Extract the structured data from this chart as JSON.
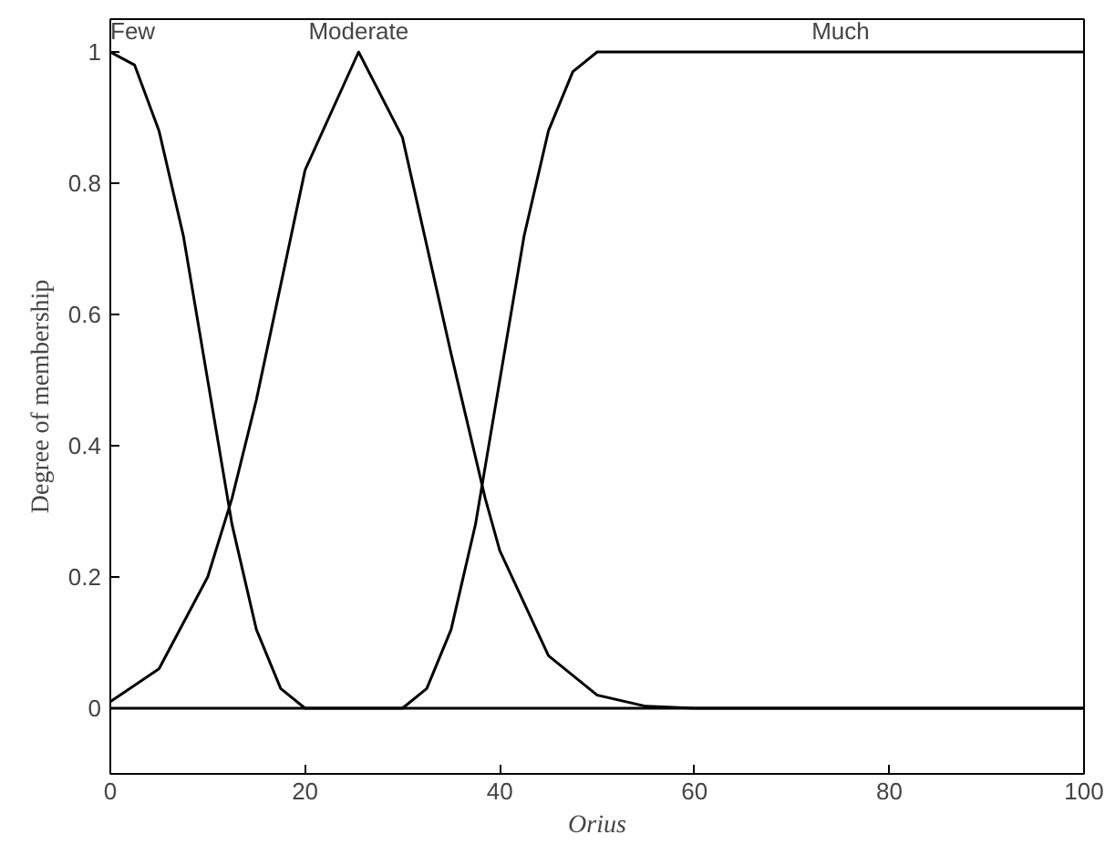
{
  "chart_data": {
    "type": "line",
    "xlabel": "Orius",
    "ylabel": "Degree of membership",
    "xlim": [
      0,
      100
    ],
    "ylim": [
      -0.1,
      1.05
    ],
    "xticks": [
      0,
      20,
      40,
      60,
      80,
      100
    ],
    "yticks": [
      0,
      0.2,
      0.4,
      0.6,
      0.8,
      1
    ],
    "grid": false,
    "marker": "none",
    "line_style": "solid",
    "series": [
      {
        "name": "Few",
        "color": "#000000",
        "x": [
          0,
          2.5,
          5,
          7.5,
          10,
          12.5,
          15,
          17.5,
          20,
          100
        ],
        "values": [
          1,
          0.98,
          0.88,
          0.72,
          0.5,
          0.28,
          0.12,
          0.03,
          0,
          0
        ]
      },
      {
        "name": "Moderate",
        "color": "#000000",
        "x": [
          0,
          5,
          10,
          12.5,
          15,
          20,
          25.5,
          30,
          35,
          38.5,
          40,
          45,
          50,
          55,
          60,
          100
        ],
        "values": [
          0.01,
          0.06,
          0.2,
          0.32,
          0.47,
          0.82,
          1,
          0.87,
          0.54,
          0.32,
          0.24,
          0.08,
          0.02,
          0.003,
          0,
          0
        ]
      },
      {
        "name": "Much",
        "color": "#000000",
        "x": [
          0,
          30,
          32.5,
          35,
          37.5,
          40,
          42.5,
          45,
          47.5,
          50,
          100
        ],
        "values": [
          0,
          0,
          0.03,
          0.12,
          0.28,
          0.5,
          0.72,
          0.88,
          0.97,
          1,
          1
        ]
      }
    ]
  }
}
